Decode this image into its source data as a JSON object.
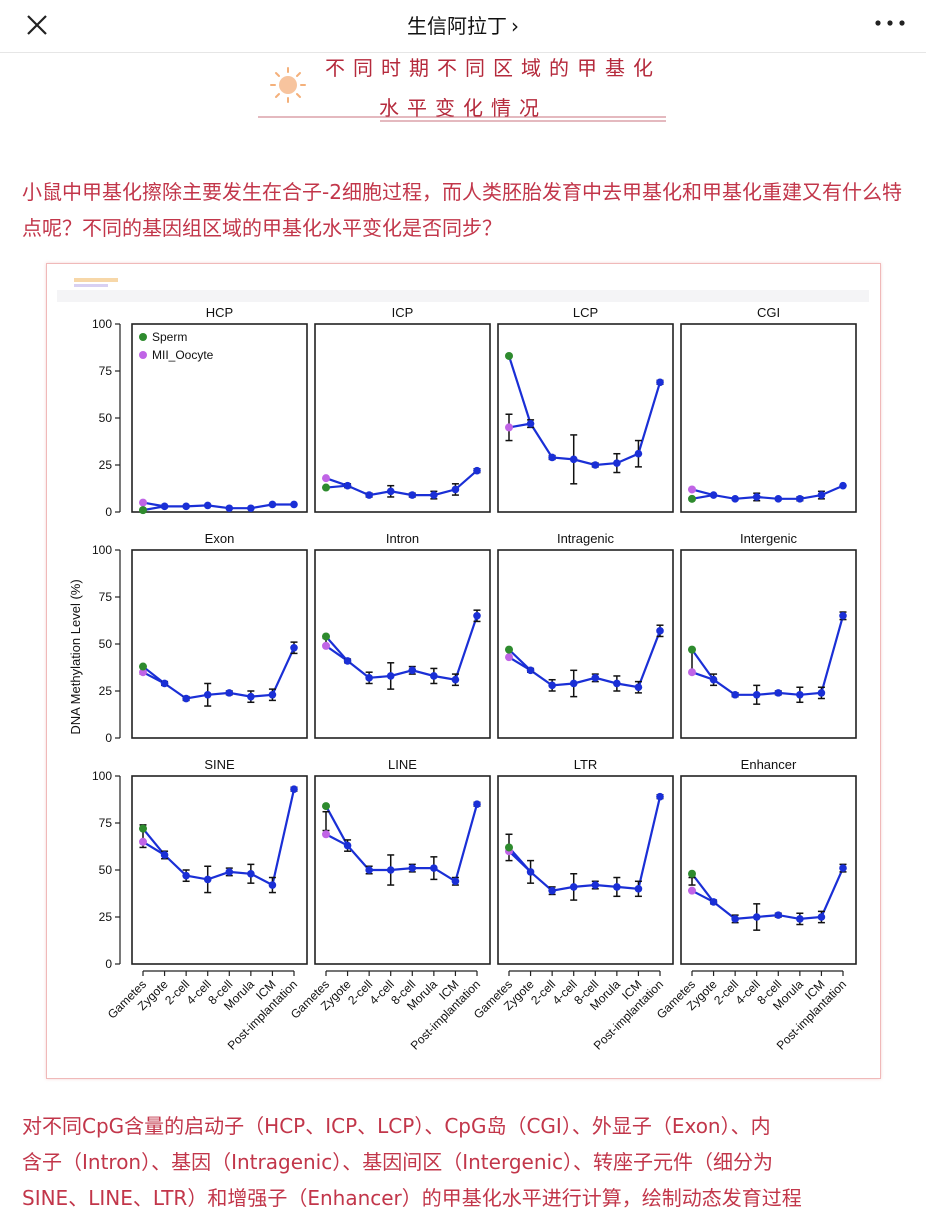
{
  "app": {
    "title": "生信阿拉丁",
    "title_chevron": "›"
  },
  "icons": {
    "close": "close-icon",
    "more": "more-icon",
    "sun": "sun-icon"
  },
  "colors": {
    "accent": "#b52a3c",
    "paragraph": "#c2364a",
    "series_main": "#1a2fd6",
    "sperm": "#2e8b2e",
    "oocyte": "#c064e6"
  },
  "heading": {
    "line1": "不同时期不同区域的甲基化",
    "line2": "水平变化情况"
  },
  "intro_text": "小鼠中甲基化擦除主要发生在合子-2细胞过程，而人类胚胎发育中去甲基化和甲基化重建又有什么特点呢？不同的基因组区域的甲基化水平变化是否同步？",
  "bottom_text": {
    "line1": "对不同CpG含量的启动子（HCP、ICP、LCP）、CpG岛（CGI）、外显子（Exon）、内",
    "line2": "含子（Intron）、基因（Intragenic）、基因间区（Intergenic）、转座子元件（细分为",
    "line3": "SINE、LINE、LTR）和增强子（Enhancer）的甲基化水平进行计算，绘制动态发育过程"
  },
  "chart_data": {
    "type": "line",
    "ylabel": "DNA Methylation Level (%)",
    "ylim": [
      0,
      100
    ],
    "yticks": [
      0,
      25,
      50,
      75,
      100
    ],
    "categories": [
      "Gametes",
      "Zygote",
      "2-cell",
      "4-cell",
      "8-cell",
      "Morula",
      "ICM",
      "Post-implantation"
    ],
    "legend": {
      "position": "top-left",
      "entries": [
        "Sperm",
        "MII_Oocyte"
      ]
    },
    "panels": [
      {
        "title": "HCP",
        "sperm": 1,
        "oocyte": 5,
        "values": [
          3,
          3,
          3,
          3.5,
          2,
          2,
          4,
          4
        ],
        "err": [
          0,
          0,
          0,
          0,
          0,
          0,
          0,
          0
        ]
      },
      {
        "title": "ICP",
        "sperm": 13,
        "oocyte": 18,
        "values": [
          16,
          14,
          9,
          11,
          9,
          9,
          12,
          22
        ],
        "err": [
          0,
          1,
          1,
          3,
          1,
          2,
          3,
          1
        ]
      },
      {
        "title": "LCP",
        "sperm": 83,
        "oocyte": 45,
        "values": [
          45,
          47,
          29,
          28,
          25,
          26,
          31,
          69
        ],
        "err": [
          7,
          2,
          1,
          13,
          1,
          5,
          7,
          1
        ]
      },
      {
        "title": "CGI",
        "sperm": 7,
        "oocyte": 12,
        "values": [
          10,
          9,
          7,
          8,
          7,
          7,
          9,
          14
        ],
        "err": [
          0,
          0,
          0,
          2,
          0,
          1,
          2,
          0
        ]
      },
      {
        "title": "Exon",
        "sperm": 38,
        "oocyte": 35,
        "values": [
          36,
          29,
          21,
          23,
          24,
          22,
          23,
          48
        ],
        "err": [
          2,
          1,
          1,
          6,
          1,
          3,
          3,
          3
        ]
      },
      {
        "title": "Intron",
        "sperm": 54,
        "oocyte": 49,
        "values": [
          51,
          41,
          32,
          33,
          36,
          33,
          31,
          65
        ],
        "err": [
          2,
          1,
          3,
          7,
          2,
          4,
          3,
          3
        ]
      },
      {
        "title": "Intragenic",
        "sperm": 47,
        "oocyte": 43,
        "values": [
          45,
          36,
          28,
          29,
          32,
          29,
          27,
          57
        ],
        "err": [
          2,
          1,
          3,
          7,
          2,
          4,
          3,
          3
        ]
      },
      {
        "title": "Intergenic",
        "sperm": 47,
        "oocyte": 35,
        "values": [
          41,
          31,
          23,
          23,
          24,
          23,
          24,
          65
        ],
        "err": [
          6,
          3,
          1,
          5,
          1,
          4,
          3,
          2
        ]
      },
      {
        "title": "SINE",
        "sperm": 72,
        "oocyte": 65,
        "values": [
          68,
          58,
          47,
          45,
          49,
          48,
          42,
          93
        ],
        "err": [
          6,
          2,
          3,
          7,
          2,
          5,
          4,
          1
        ]
      },
      {
        "title": "LINE",
        "sperm": 84,
        "oocyte": 69,
        "values": [
          76,
          63,
          50,
          50,
          51,
          51,
          44,
          85
        ],
        "err": [
          5,
          3,
          2,
          8,
          2,
          6,
          2,
          1
        ]
      },
      {
        "title": "LTR",
        "sperm": 62,
        "oocyte": 60,
        "values": [
          62,
          49,
          39,
          41,
          42,
          41,
          40,
          89
        ],
        "err": [
          7,
          6,
          2,
          7,
          2,
          5,
          4,
          1
        ]
      },
      {
        "title": "Enhancer",
        "sperm": 48,
        "oocyte": 39,
        "values": [
          44,
          33,
          24,
          25,
          26,
          24,
          25,
          51
        ],
        "err": [
          2,
          1,
          2,
          7,
          1,
          3,
          3,
          2
        ]
      }
    ]
  }
}
